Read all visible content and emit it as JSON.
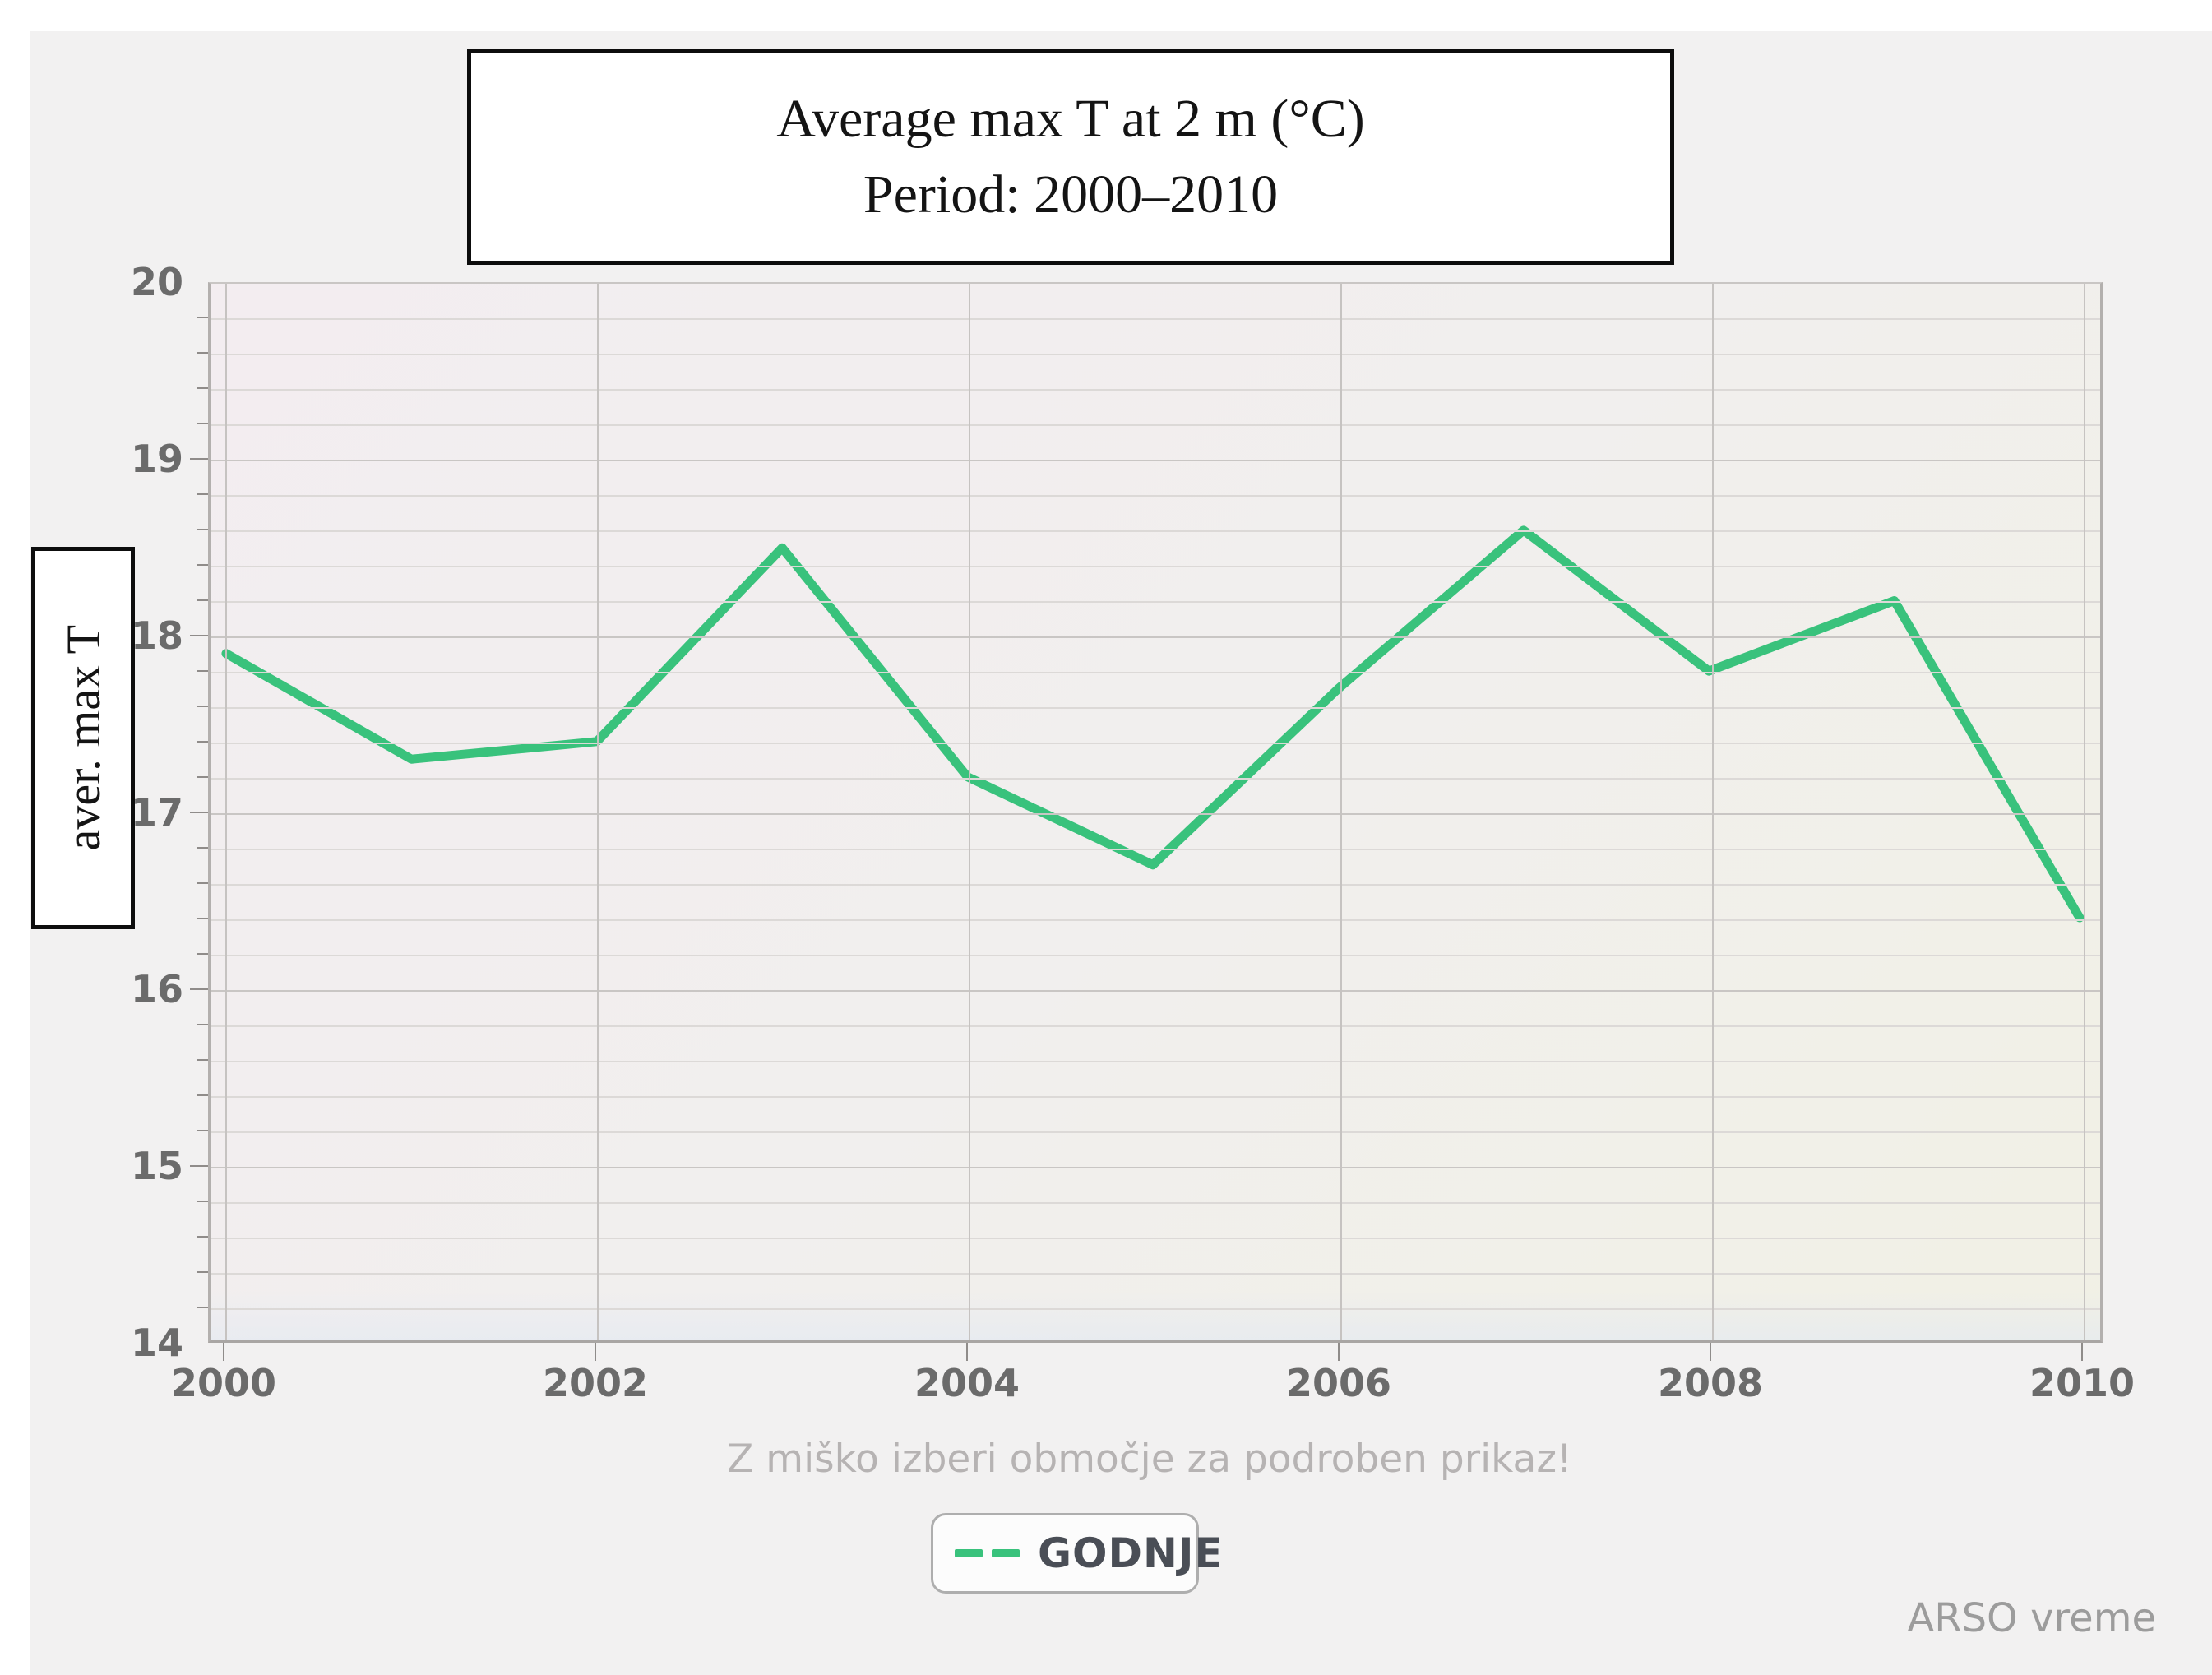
{
  "accent_color": "#39c27c",
  "page": {
    "background": "#ffffff",
    "panel_background": "#f2f1f1"
  },
  "title_box": {
    "line1": "Average max T at 2 m (°C)",
    "line2": "Period: 2000–2010"
  },
  "y_axis_box": {
    "label": "aver. max T"
  },
  "legend": {
    "series_label": "GODNJE",
    "dash_color": "#39c27c"
  },
  "footer": {
    "hint": "Z miško izberi območje za podroben prikaz!",
    "watermark": "ARSO vreme"
  },
  "chart_data": {
    "type": "line",
    "title": "Average max T at 2 m (°C)",
    "subtitle": "Period: 2000–2010",
    "ylabel": "aver. max T",
    "xlabel": "",
    "x": [
      2000,
      2001,
      2002,
      2003,
      2004,
      2005,
      2006,
      2007,
      2008,
      2009,
      2010
    ],
    "series": [
      {
        "name": "GODNJE",
        "values": [
          17.9,
          17.3,
          17.4,
          18.5,
          17.2,
          16.7,
          17.7,
          18.6,
          17.8,
          18.2,
          16.4
        ]
      }
    ],
    "xlim": [
      2000,
      2010
    ],
    "ylim": [
      14,
      20
    ],
    "xticks": [
      2000,
      2002,
      2004,
      2006,
      2008,
      2010
    ],
    "yticks": [
      14,
      15,
      16,
      17,
      18,
      19,
      20
    ],
    "minor_y_step": 0.2,
    "grid": true,
    "legend_position": "bottom",
    "colors": {
      "line": "#39c27c",
      "grid_minor": "#dcd9d7",
      "grid_major": "#c9c6c4",
      "plot_border": "#b3b0ae",
      "tick_label": "#6b6b6b",
      "title_text": "#141414",
      "legend_text": "#4a4e56",
      "hint_text": "#b6b3b3",
      "watermark_text": "#9c9c9c"
    }
  }
}
